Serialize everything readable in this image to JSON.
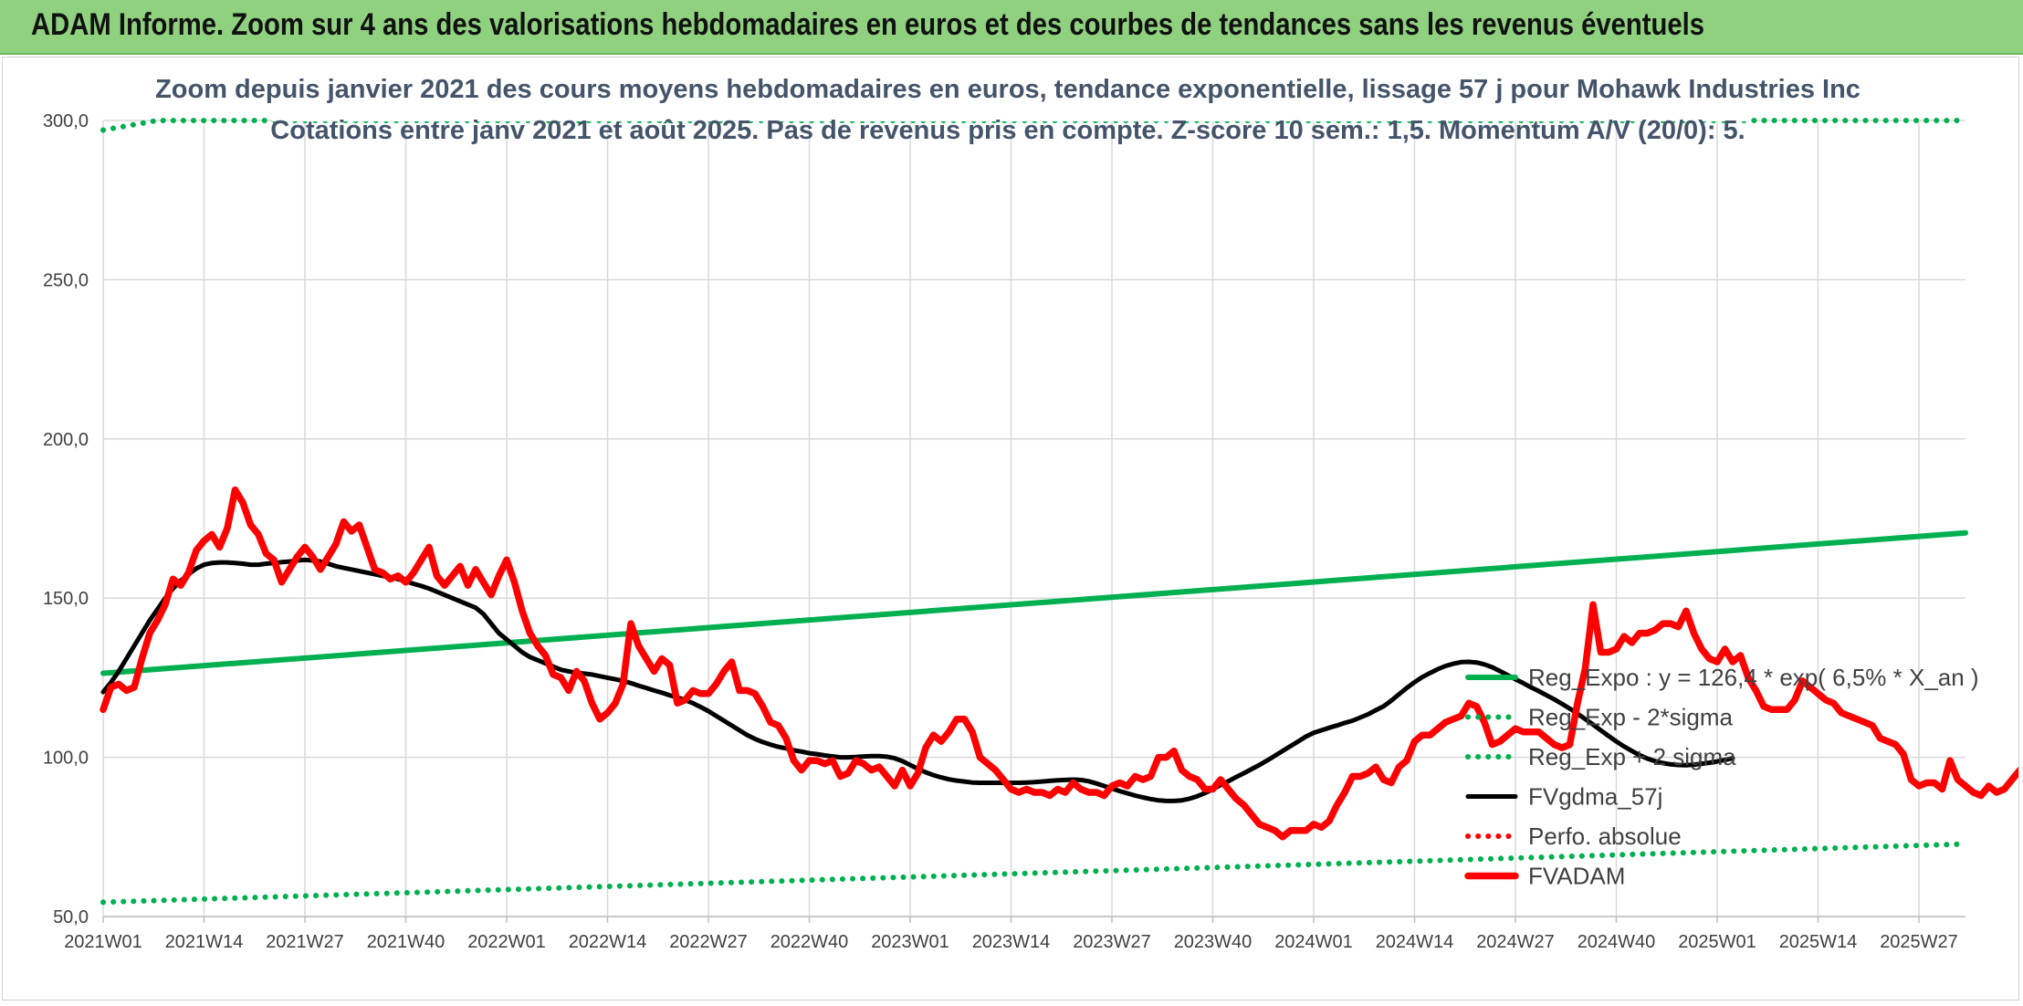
{
  "banner": {
    "title": "ADAM Informe. Zoom sur 4 ans des valorisations hebdomadaires en euros et des courbes de tendances sans les revenus éventuels"
  },
  "chart_data": {
    "type": "line",
    "title_line1": "Zoom depuis janvier 2021 des cours moyens hebdomadaires en euros, tendance exponentielle, lissage 57 j pour Mohawk Industries Inc",
    "title_line2": "Cotations entre janv 2021 et août 2025. Pas de revenus pris en compte. Z-score 10 sem.: 1,5. Momentum A/V (20/0): 5.",
    "ylim": [
      50,
      300
    ],
    "y_ticks": [
      "50,0",
      "100,0",
      "150,0",
      "200,0",
      "250,0",
      "300,0"
    ],
    "x_ticks": [
      "2021W01",
      "2021W14",
      "2021W27",
      "2021W40",
      "2022W01",
      "2022W14",
      "2022W27",
      "2022W40",
      "2023W01",
      "2023W14",
      "2023W27",
      "2023W40",
      "2024W01",
      "2024W14",
      "2024W27",
      "2024W40",
      "2025W01",
      "2025W14",
      "2025W27"
    ],
    "x_range": [
      "2021W01",
      "2025W33"
    ],
    "grid": true,
    "legend_position": "right",
    "colors": {
      "green": "#00b050",
      "red": "#ff0000",
      "black": "#000000",
      "title": "#44546a",
      "banner": "#8fd17f"
    },
    "series": [
      {
        "name": "Reg_Expo : y = 126,4 * exp( 6,5% *  X_an )",
        "style": "solid",
        "color": "#00b050",
        "x": [
          "2021W01",
          "2025W33"
        ],
        "values": [
          126.4,
          170.5
        ]
      },
      {
        "name": "Reg_Exp - 2*sigma",
        "style": "dotted",
        "color": "#00b050",
        "x": [
          "2021W01",
          "2025W33"
        ],
        "values": [
          54.5,
          72.8
        ]
      },
      {
        "name": "Reg_Exp + 2 sigma",
        "style": "dotted",
        "color": "#00b050",
        "x": [
          "2021W01",
          "2021W08",
          "2025W33"
        ],
        "values": [
          297.0,
          300.0,
          300.0
        ]
      },
      {
        "name": "FVgdma_57j",
        "style": "solid",
        "color": "#000000",
        "values": [
          120.5,
          123.5,
          127,
          131,
          135,
          139,
          143,
          146.5,
          150,
          153,
          155.5,
          157.5,
          159.3,
          160.5,
          161.0,
          161.2,
          161.2,
          161.0,
          160.8,
          160.5,
          160.5,
          160.8,
          161.0,
          161.3,
          161.5,
          161.8,
          162.0,
          161.8,
          161.5,
          160.8,
          160.0,
          159.5,
          159.0,
          158.5,
          158.0,
          157.5,
          157.0,
          156.5,
          156.0,
          155.3,
          154.5,
          153.8,
          153.0,
          152.0,
          151.0,
          150.0,
          149.0,
          148.0,
          147.0,
          145.0,
          142.0,
          139.0,
          137.0,
          135.0,
          133.0,
          131.5,
          130.5,
          129.5,
          128.5,
          127.5,
          127.0,
          126.5,
          126.3,
          126.0,
          125.5,
          125.0,
          124.5,
          124.0,
          123.3,
          122.5,
          121.8,
          121.0,
          120.3,
          119.5,
          118.8,
          118.0,
          117.0,
          115.8,
          114.5,
          113.0,
          111.5,
          110.0,
          108.5,
          107.0,
          105.8,
          104.8,
          104.0,
          103.3,
          102.8,
          102.2,
          101.8,
          101.3,
          101.0,
          100.6,
          100.3,
          100.0,
          100.0,
          100.1,
          100.3,
          100.4,
          100.4,
          100.2,
          99.7,
          98.8,
          97.6,
          96.4,
          95.3,
          94.4,
          93.7,
          93.1,
          92.7,
          92.4,
          92.1,
          92.0,
          92.0,
          92.0,
          92.0,
          92.0,
          92.0,
          92.1,
          92.2,
          92.4,
          92.6,
          92.8,
          92.9,
          93.0,
          92.9,
          92.5,
          91.8,
          91.0,
          90.2,
          89.4,
          88.7,
          88.0,
          87.4,
          86.9,
          86.5,
          86.3,
          86.3,
          86.5,
          87.0,
          87.8,
          88.8,
          90.0,
          91.3,
          92.5,
          93.8,
          95.0,
          96.3,
          97.6,
          99.0,
          100.5,
          102.0,
          103.5,
          105.0,
          106.5,
          107.7,
          108.5,
          109.3,
          110.0,
          110.8,
          111.5,
          112.5,
          113.5,
          114.8,
          116.0,
          117.8,
          119.8,
          121.8,
          123.6,
          125.2,
          126.5,
          127.7,
          128.7,
          129.4,
          129.9,
          130.0,
          129.8,
          129.2,
          128.3,
          127.1,
          125.8,
          124.5,
          123.3,
          122.0,
          120.8,
          119.5,
          118.2,
          116.8,
          115.3,
          113.7,
          112.0,
          110.3,
          108.5,
          106.7,
          105.0,
          103.4,
          102.0,
          100.7,
          99.6,
          98.8,
          98.2,
          97.8,
          97.6,
          97.5,
          97.7,
          98.0,
          98.3,
          98.7,
          99.2,
          99.7
        ]
      },
      {
        "name": "Perfo. absolue",
        "style": "dotted",
        "color": "#ff0000",
        "values": []
      },
      {
        "name": "FVADAM",
        "style": "solid",
        "color": "#ff0000",
        "values": [
          115,
          122,
          123,
          121,
          122,
          131,
          139,
          143,
          148,
          156,
          154,
          158,
          165,
          168,
          170,
          166,
          172,
          184,
          180,
          173,
          170,
          164,
          162,
          155,
          159,
          163,
          166,
          163,
          159,
          163,
          167,
          174,
          171,
          173,
          166,
          159,
          158,
          156,
          157,
          155,
          158,
          162,
          166,
          157,
          154,
          157,
          160,
          154,
          159,
          155,
          151,
          157,
          162,
          155,
          146,
          139,
          135,
          132,
          126,
          125,
          121,
          127,
          124,
          117,
          112,
          114,
          117,
          123,
          142,
          135,
          131,
          127,
          131,
          129,
          117,
          118,
          121,
          120,
          120,
          123,
          127,
          130,
          121,
          121,
          120,
          116,
          111,
          110,
          106,
          99,
          96,
          99,
          99,
          98,
          99,
          94,
          95,
          99,
          98,
          96,
          97,
          94,
          91,
          96,
          91,
          95,
          103,
          107,
          105,
          108,
          112,
          112,
          108,
          100,
          98,
          96,
          93,
          90,
          89,
          90,
          89,
          89,
          88,
          90,
          89,
          92,
          90,
          89,
          89,
          88,
          91,
          92,
          91,
          94,
          93,
          94,
          100,
          100,
          102,
          96,
          94,
          93,
          90,
          90,
          93,
          90,
          87,
          85,
          82,
          79,
          78,
          77,
          75,
          77,
          77,
          77,
          79,
          78,
          80,
          85,
          89,
          94,
          94,
          95,
          97,
          93,
          92,
          97,
          99,
          105,
          107,
          107,
          109,
          111,
          112,
          113,
          117,
          116,
          111,
          104,
          105,
          107,
          109,
          108,
          108,
          108,
          106,
          104,
          103,
          104,
          117,
          128,
          148,
          133,
          133,
          134,
          138,
          136,
          139,
          139,
          140,
          142,
          142,
          141,
          146,
          139,
          134,
          131,
          130,
          134,
          130,
          132,
          125,
          121,
          116,
          115,
          115,
          115,
          118,
          124,
          122,
          120,
          118,
          117,
          114,
          113,
          112,
          111,
          110,
          106,
          105,
          104,
          101,
          93,
          91,
          92,
          92,
          90,
          99,
          93,
          91,
          89,
          88,
          91,
          89,
          90,
          93,
          96,
          96,
          98,
          103
        ]
      }
    ]
  }
}
